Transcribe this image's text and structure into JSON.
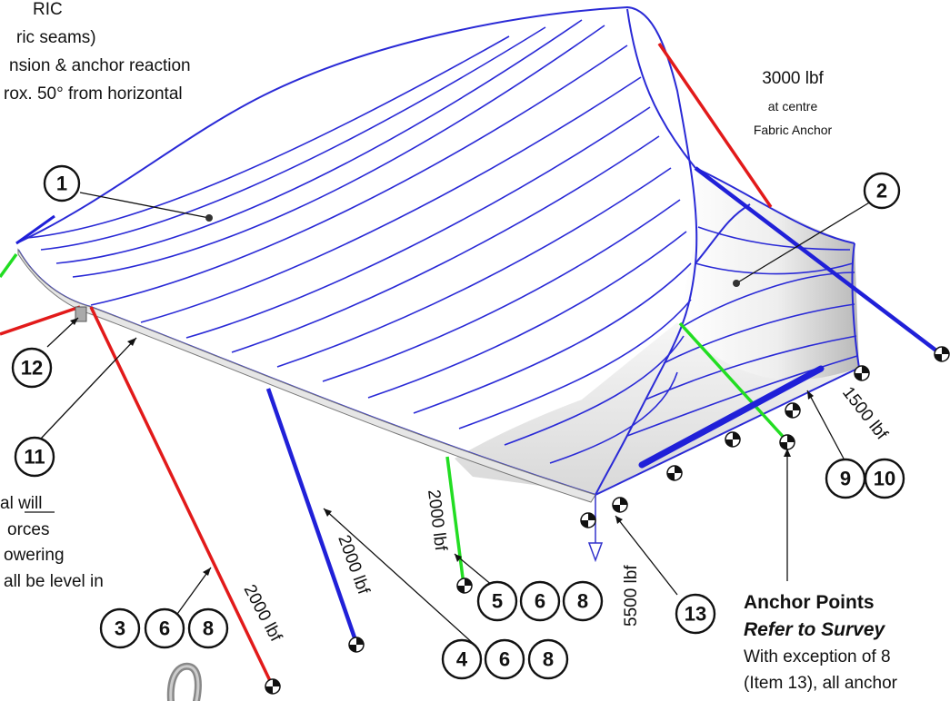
{
  "notes_top_left": {
    "line1": "RIC",
    "line2": "ric seams)",
    "line3": "nsion & anchor reaction",
    "line4": "rox. 50° from horizontal"
  },
  "notes_left": {
    "line1": "al will",
    "line2": "orces",
    "line3": "owering",
    "line4": "all be level in"
  },
  "force_labels": {
    "top_right_value": "3000 lbf",
    "top_right_sub1": "at centre",
    "top_right_sub2": "Fabric Anchor",
    "right_edge": "1500 lbf",
    "red_post": "2000 lbf",
    "blue_post": "2000 lbf",
    "green_post": "2000 lbf",
    "corner": "5500 lbf"
  },
  "callouts": {
    "c1": "1",
    "c2": "2",
    "c3": "3",
    "c4": "4",
    "c5": "5",
    "c6": "6",
    "c8": "8",
    "c9": "9",
    "c10": "10",
    "c11": "11",
    "c12": "12",
    "c13": "13"
  },
  "anchor_note": {
    "title": "Anchor Points",
    "subtitle": "Refer to Survey",
    "line1": "With exception of 8",
    "line2": "(Item 13), all anchor"
  },
  "colors": {
    "fabric_edge": "#2a2ad6",
    "cable_red": "#e21a1a",
    "cable_blue": "#2020d8",
    "cable_green": "#22dd22",
    "ink": "#111111"
  }
}
